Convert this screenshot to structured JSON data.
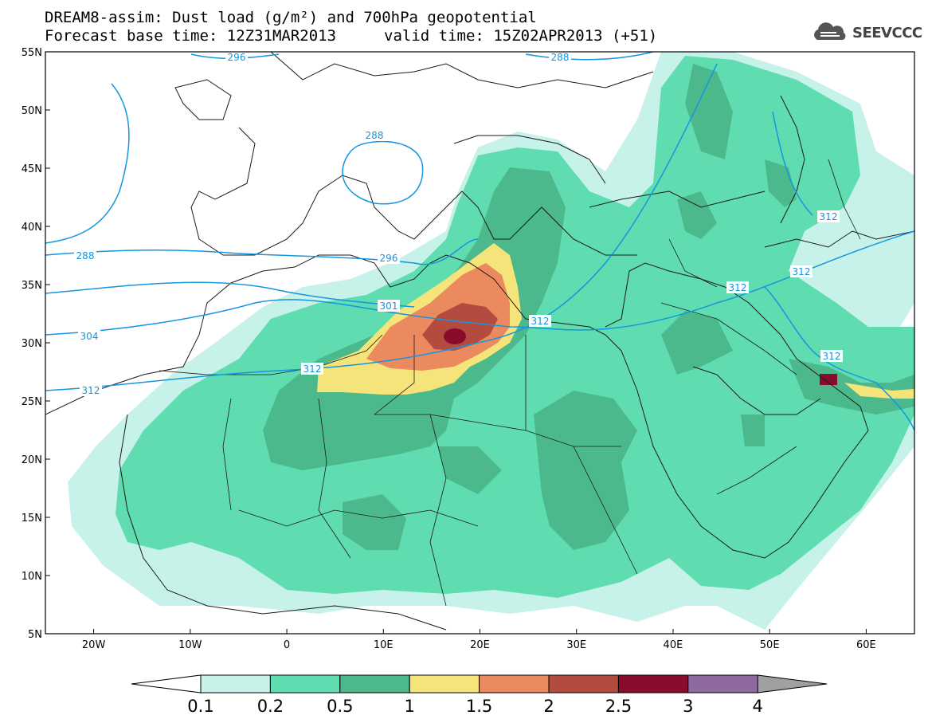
{
  "header": {
    "title_line1": "DREAM8-assim: Dust load (g/m²) and 700hPa geopotential",
    "base_time": "Forecast base time: 12Z31MAR2013",
    "valid_time": "valid time: 15Z02APR2013 (+51)",
    "logo_text": "SEEVCCC",
    "logo_icon": "cloud-icon"
  },
  "map": {
    "lon_range": [
      -25,
      65
    ],
    "lat_range": [
      5,
      55
    ],
    "lat_ticks": [
      "55N",
      "50N",
      "45N",
      "40N",
      "35N",
      "30N",
      "25N",
      "20N",
      "15N",
      "10N",
      "5N"
    ],
    "lon_ticks": [
      "20W",
      "10W",
      "0",
      "10E",
      "20E",
      "30E",
      "40E",
      "50E",
      "60E"
    ],
    "contour_labels": [
      "296",
      "288",
      "288",
      "296",
      "301",
      "312",
      "312",
      "304",
      "312",
      "312",
      "312",
      "312",
      "312",
      "288"
    ]
  },
  "colorbar": {
    "labels": [
      "0.1",
      "0.2",
      "0.5",
      "1",
      "1.5",
      "2",
      "2.5",
      "3",
      "4"
    ],
    "colors": [
      "#c6f2ea",
      "#5fdcb0",
      "#4cb98d",
      "#f5e47a",
      "#ec8a5f",
      "#b34c3f",
      "#8a0c2d",
      "#8f6aa1"
    ]
  }
}
